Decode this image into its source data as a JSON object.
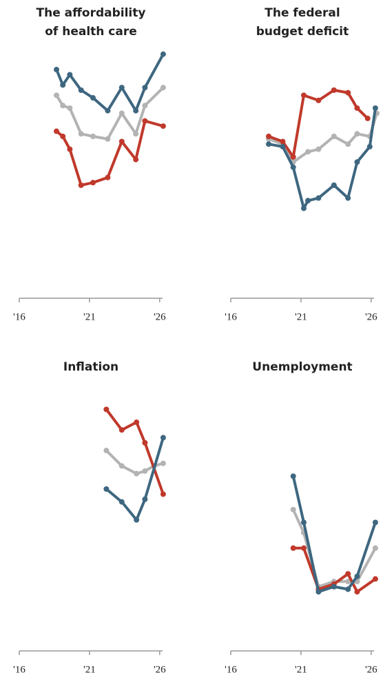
{
  "chart_data": [
    {
      "type": "line",
      "title": [
        "The affordability",
        "of health care"
      ],
      "xlim": [
        2016,
        2026.5
      ],
      "ylim": [
        0,
        100
      ],
      "xticks": [
        {
          "value": 2016,
          "label": "'16"
        },
        {
          "value": 2021,
          "label": "'21"
        },
        {
          "value": 2026,
          "label": "'26"
        }
      ],
      "series": [
        {
          "color": "#b3b3b3",
          "x": [
            2018.65,
            2019.1,
            2019.6,
            2020.4,
            2021.25,
            2022.3,
            2023.3,
            2024.3,
            2024.95,
            2026.25
          ],
          "values": [
            79,
            75,
            74,
            64,
            63,
            62,
            72,
            64,
            75,
            82
          ]
        },
        {
          "color": "#c0392b",
          "x": [
            2018.65,
            2019.1,
            2019.6,
            2020.4,
            2021.25,
            2022.3,
            2023.3,
            2024.3,
            2024.95,
            2026.25
          ],
          "values": [
            65,
            63,
            58,
            44,
            45,
            47,
            61,
            54,
            69,
            67
          ]
        },
        {
          "color": "#3e6780",
          "x": [
            2018.65,
            2019.1,
            2019.6,
            2020.4,
            2021.25,
            2022.3,
            2023.3,
            2024.3,
            2024.95,
            2026.25
          ],
          "values": [
            89,
            83,
            87,
            81,
            78,
            73,
            82,
            73,
            82,
            95
          ]
        }
      ]
    },
    {
      "type": "line",
      "title": [
        "The federal",
        "budget deficit"
      ],
      "xlim": [
        2016,
        2026.5
      ],
      "ylim": [
        0,
        100
      ],
      "xticks": [
        {
          "value": 2016,
          "label": "'16"
        },
        {
          "value": 2021,
          "label": "'21"
        },
        {
          "value": 2026,
          "label": "'26"
        }
      ],
      "series": [
        {
          "color": "#b3b3b3",
          "x": [
            2018.7,
            2019.7,
            2020.45,
            2021.5,
            2022.25,
            2023.35,
            2024.35,
            2025.0,
            2025.9,
            2026.4
          ],
          "values": [
            62,
            60,
            53,
            57,
            58,
            63,
            60,
            64,
            63,
            72
          ]
        },
        {
          "color": "#c0392b",
          "x": [
            2018.7,
            2019.7,
            2020.45,
            2021.2,
            2022.25,
            2023.35,
            2024.35,
            2025.0,
            2025.75
          ],
          "values": [
            63,
            61,
            55,
            79,
            77,
            81,
            80,
            74,
            70
          ]
        },
        {
          "color": "#3e6780",
          "x": [
            2018.7,
            2019.7,
            2020.45,
            2021.2,
            2021.5,
            2022.25,
            2023.35,
            2024.35,
            2025.0,
            2025.9,
            2026.3
          ],
          "values": [
            60,
            59,
            51,
            35,
            38,
            39,
            44,
            39,
            53,
            59,
            74
          ]
        }
      ]
    },
    {
      "type": "line",
      "title": [
        "Inflation"
      ],
      "xlim": [
        2016,
        2026.5
      ],
      "ylim": [
        0,
        100
      ],
      "xticks": [
        {
          "value": 2016,
          "label": "'16"
        },
        {
          "value": 2021,
          "label": "'21"
        },
        {
          "value": 2026,
          "label": "'26"
        }
      ],
      "series": [
        {
          "color": "#b3b3b3",
          "x": [
            2022.2,
            2023.3,
            2024.35,
            2024.95,
            2025.6,
            2026.25
          ],
          "values": [
            78,
            72,
            69,
            70,
            72,
            73
          ]
        },
        {
          "color": "#c0392b",
          "x": [
            2022.2,
            2023.3,
            2024.35,
            2024.95,
            2026.25
          ],
          "values": [
            94,
            86,
            89,
            81,
            61
          ]
        },
        {
          "color": "#3e6780",
          "x": [
            2022.2,
            2023.3,
            2024.35,
            2024.95,
            2026.25
          ],
          "values": [
            63,
            58,
            51,
            59,
            83
          ]
        }
      ]
    },
    {
      "type": "line",
      "title": [
        "Unemployment"
      ],
      "xlim": [
        2016,
        2026.5
      ],
      "ylim": [
        0,
        100
      ],
      "xticks": [
        {
          "value": 2016,
          "label": "'16"
        },
        {
          "value": 2021,
          "label": "'21"
        },
        {
          "value": 2026,
          "label": "'26"
        }
      ],
      "series": [
        {
          "color": "#b3b3b3",
          "x": [
            2020.45,
            2021.2,
            2022.25,
            2023.35,
            2024.35,
            2025.0,
            2026.3
          ],
          "values": [
            55,
            46,
            25,
            27,
            27,
            27,
            40
          ]
        },
        {
          "color": "#c0392b",
          "x": [
            2020.45,
            2021.2,
            2022.25,
            2023.35,
            2024.35,
            2025.0,
            2026.3
          ],
          "values": [
            40,
            40,
            24,
            26,
            30,
            23,
            28
          ]
        },
        {
          "color": "#3e6780",
          "x": [
            2020.45,
            2021.2,
            2022.25,
            2023.35,
            2024.35,
            2025.0,
            2026.3
          ],
          "values": [
            68,
            50,
            23,
            25,
            24,
            29,
            50
          ]
        }
      ]
    }
  ]
}
